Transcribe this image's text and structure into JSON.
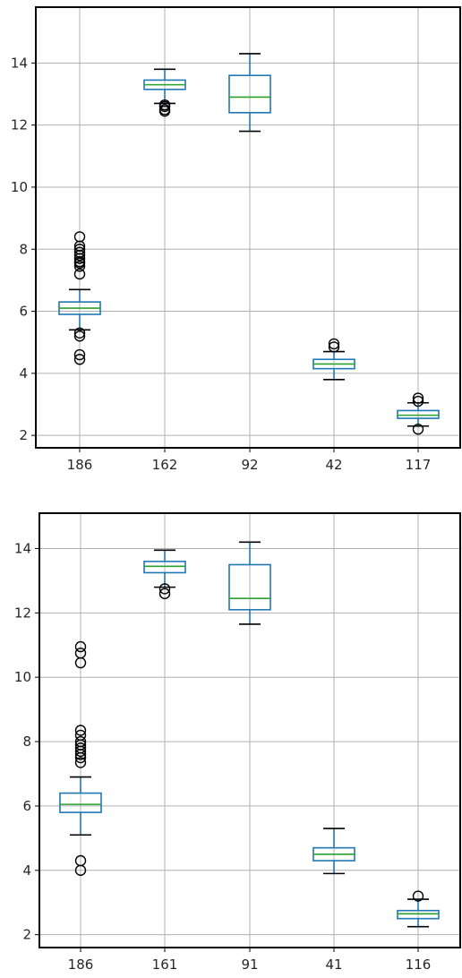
{
  "colors": {
    "box": "#1f77b4",
    "median": "#2ca02c",
    "cap": "#000000",
    "flier": "#000000",
    "grid": "#b0b0b0"
  },
  "chart_data": [
    {
      "type": "box",
      "grid": true,
      "title": "",
      "xlabel": "",
      "ylabel": "",
      "ylim": [
        1.6,
        15.8
      ],
      "yticks": [
        2,
        4,
        6,
        8,
        10,
        12,
        14
      ],
      "categories": [
        "186",
        "162",
        "92",
        "42",
        "117"
      ],
      "boxes": [
        {
          "whislo": 5.4,
          "q1": 5.9,
          "med": 6.1,
          "q3": 6.3,
          "whishi": 6.7,
          "fliers": [
            4.45,
            4.6,
            5.2,
            5.3,
            7.2,
            7.45,
            7.55,
            7.6,
            7.7,
            7.8,
            7.9,
            8.0,
            8.1,
            8.4
          ]
        },
        {
          "whislo": 12.7,
          "q1": 13.15,
          "med": 13.3,
          "q3": 13.45,
          "whishi": 13.8,
          "fliers": [
            12.45,
            12.5,
            12.6,
            12.65
          ]
        },
        {
          "whislo": 11.8,
          "q1": 12.4,
          "med": 12.9,
          "q3": 13.6,
          "whishi": 14.3,
          "fliers": []
        },
        {
          "whislo": 3.8,
          "q1": 4.15,
          "med": 4.3,
          "q3": 4.45,
          "whishi": 4.7,
          "fliers": [
            4.85,
            4.95
          ]
        },
        {
          "whislo": 2.3,
          "q1": 2.55,
          "med": 2.65,
          "q3": 2.8,
          "whishi": 3.05,
          "fliers": [
            2.2,
            3.1,
            3.2
          ]
        }
      ]
    },
    {
      "type": "box",
      "grid": true,
      "title": "",
      "xlabel": "",
      "ylabel": "",
      "ylim": [
        1.6,
        15.1
      ],
      "yticks": [
        2,
        4,
        6,
        8,
        10,
        12,
        14
      ],
      "categories": [
        "186",
        "161",
        "91",
        "41",
        "116"
      ],
      "boxes": [
        {
          "whislo": 5.1,
          "q1": 5.8,
          "med": 6.05,
          "q3": 6.4,
          "whishi": 6.9,
          "fliers": [
            4.0,
            4.3,
            7.35,
            7.5,
            7.6,
            7.7,
            7.8,
            7.9,
            8.0,
            8.2,
            8.35,
            10.45,
            10.75,
            10.95
          ]
        },
        {
          "whislo": 12.8,
          "q1": 13.25,
          "med": 13.45,
          "q3": 13.6,
          "whishi": 13.95,
          "fliers": [
            12.6,
            12.75
          ]
        },
        {
          "whislo": 11.65,
          "q1": 12.1,
          "med": 12.45,
          "q3": 13.5,
          "whishi": 14.2,
          "fliers": []
        },
        {
          "whislo": 3.9,
          "q1": 4.3,
          "med": 4.5,
          "q3": 4.7,
          "whishi": 5.3,
          "fliers": []
        },
        {
          "whislo": 2.25,
          "q1": 2.5,
          "med": 2.65,
          "q3": 2.75,
          "whishi": 3.1,
          "fliers": [
            3.2
          ]
        }
      ]
    }
  ]
}
